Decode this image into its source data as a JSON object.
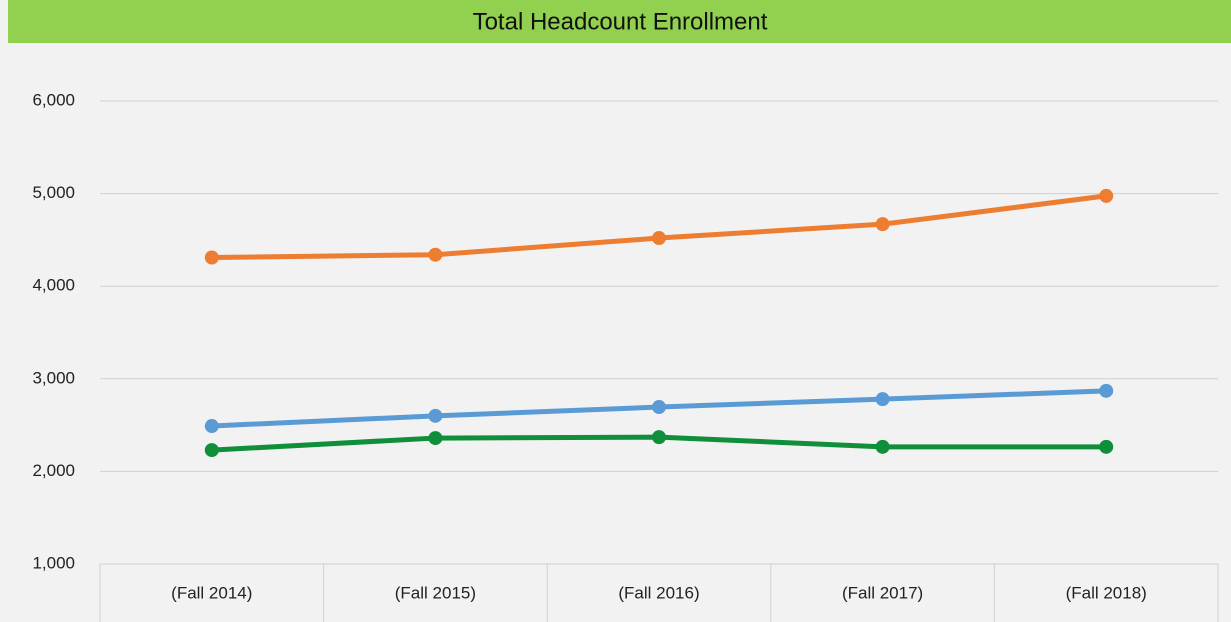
{
  "chart_data": {
    "type": "line",
    "title": "Total Headcount Enrollment",
    "categories": [
      "(Fall 2014)",
      "(Fall 2015)",
      "(Fall 2016)",
      "(Fall 2017)",
      "(Fall 2018)"
    ],
    "series": [
      {
        "color": "#ed7d31",
        "values": [
          4310,
          4340,
          4520,
          4670,
          4975
        ]
      },
      {
        "color": "#5b9bd5",
        "values": [
          2490,
          2600,
          2695,
          2780,
          2870
        ]
      },
      {
        "color": "#0f8f3a",
        "values": [
          2230,
          2360,
          2370,
          2265,
          2265
        ]
      }
    ],
    "ylim": [
      1000,
      6000
    ],
    "yticks": [
      {
        "value": 1000,
        "label": "1,000"
      },
      {
        "value": 2000,
        "label": "2,000"
      },
      {
        "value": 3000,
        "label": "3,000"
      },
      {
        "value": 4000,
        "label": "4,000"
      },
      {
        "value": 5000,
        "label": "5,000"
      },
      {
        "value": 6000,
        "label": "6,000"
      }
    ],
    "grid": true
  }
}
